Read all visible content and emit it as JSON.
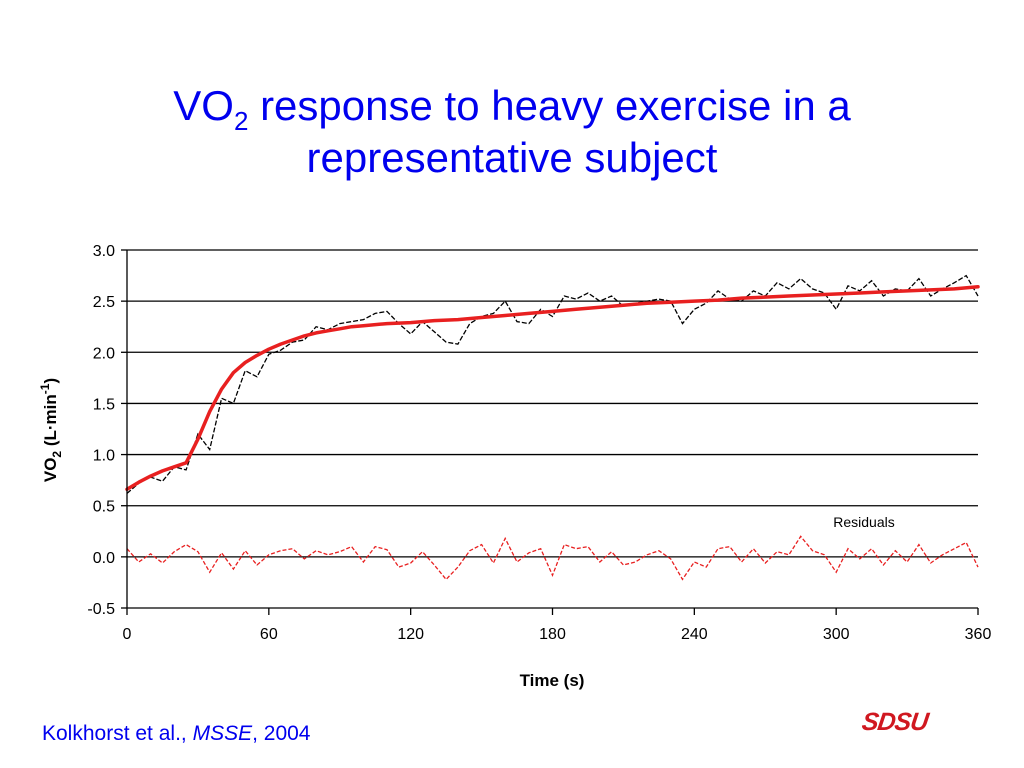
{
  "title": {
    "line1_pre": "VO",
    "line1_sub": "2",
    "line1_post": " response to heavy exercise in a",
    "line2": "representative subject"
  },
  "citation": {
    "authors": "Kolkhorst et al., ",
    "journal": "MSSE",
    "year": ", 2004"
  },
  "logo_text": "SDSU",
  "colors": {
    "title": "#0000ee",
    "fit": "#e82020",
    "data": "#000000",
    "residual": "#e82020",
    "logo": "#d01820"
  },
  "chart_data": {
    "type": "line",
    "xlabel": "Time (s)",
    "ylabel": {
      "pre": "VO",
      "sub": "2",
      "post": " (L·min",
      "sup": "-1",
      "end": ")"
    },
    "xlim": [
      0,
      360
    ],
    "ylim": [
      -0.5,
      3.0
    ],
    "xticks": [
      0,
      60,
      120,
      180,
      240,
      300,
      360
    ],
    "xtick_labels": [
      "0",
      "60",
      "120",
      "180",
      "240",
      "300",
      "360"
    ],
    "yticks": [
      3.0,
      2.5,
      2.0,
      1.5,
      1.0,
      0.5,
      0.0,
      -0.5
    ],
    "ytick_labels": [
      "3.0",
      "2.5",
      "2.0",
      "1.5",
      "1.0",
      "0.5",
      "0.0",
      "-0.5"
    ],
    "grid": "horizontal",
    "annotation": "Residuals",
    "series": [
      {
        "style": "black-dashed",
        "x": [
          0,
          5,
          10,
          15,
          20,
          25,
          30,
          35,
          40,
          45,
          50,
          55,
          60,
          65,
          70,
          75,
          80,
          85,
          90,
          95,
          100,
          105,
          110,
          115,
          120,
          125,
          130,
          135,
          140,
          145,
          150,
          155,
          160,
          165,
          170,
          175,
          180,
          185,
          190,
          195,
          200,
          205,
          210,
          215,
          220,
          225,
          230,
          235,
          240,
          245,
          250,
          255,
          260,
          265,
          270,
          275,
          280,
          285,
          290,
          295,
          300,
          305,
          310,
          315,
          320,
          325,
          330,
          335,
          340,
          345,
          350,
          355,
          360
        ],
        "values": [
          0.62,
          0.72,
          0.78,
          0.74,
          0.88,
          0.85,
          1.2,
          1.05,
          1.55,
          1.5,
          1.82,
          1.76,
          1.98,
          2.02,
          2.1,
          2.12,
          2.25,
          2.22,
          2.28,
          2.3,
          2.32,
          2.38,
          2.4,
          2.28,
          2.18,
          2.3,
          2.2,
          2.1,
          2.08,
          2.28,
          2.35,
          2.38,
          2.5,
          2.3,
          2.28,
          2.42,
          2.35,
          2.55,
          2.52,
          2.58,
          2.5,
          2.55,
          2.45,
          2.48,
          2.5,
          2.52,
          2.5,
          2.28,
          2.42,
          2.48,
          2.6,
          2.52,
          2.5,
          2.6,
          2.55,
          2.68,
          2.62,
          2.72,
          2.62,
          2.58,
          2.42,
          2.65,
          2.6,
          2.7,
          2.55,
          2.62,
          2.6,
          2.72,
          2.55,
          2.62,
          2.68,
          2.75,
          2.55
        ]
      },
      {
        "style": "red-fit",
        "x": [
          0,
          5,
          10,
          15,
          20,
          25,
          30,
          35,
          40,
          45,
          50,
          55,
          60,
          65,
          70,
          75,
          80,
          85,
          90,
          95,
          100,
          110,
          120,
          130,
          140,
          150,
          160,
          170,
          180,
          190,
          200,
          210,
          220,
          230,
          240,
          250,
          260,
          270,
          280,
          290,
          300,
          310,
          320,
          330,
          340,
          350,
          360
        ],
        "values": [
          0.66,
          0.73,
          0.79,
          0.84,
          0.88,
          0.92,
          1.15,
          1.42,
          1.64,
          1.8,
          1.9,
          1.97,
          2.03,
          2.08,
          2.12,
          2.16,
          2.19,
          2.21,
          2.23,
          2.25,
          2.26,
          2.28,
          2.29,
          2.31,
          2.32,
          2.34,
          2.36,
          2.38,
          2.4,
          2.42,
          2.44,
          2.46,
          2.48,
          2.49,
          2.5,
          2.51,
          2.53,
          2.54,
          2.55,
          2.56,
          2.57,
          2.58,
          2.59,
          2.6,
          2.61,
          2.62,
          2.64
        ]
      },
      {
        "style": "residuals-dashed",
        "x": [
          0,
          5,
          10,
          15,
          20,
          25,
          30,
          35,
          40,
          45,
          50,
          55,
          60,
          65,
          70,
          75,
          80,
          85,
          90,
          95,
          100,
          105,
          110,
          115,
          120,
          125,
          130,
          135,
          140,
          145,
          150,
          155,
          160,
          165,
          170,
          175,
          180,
          185,
          190,
          195,
          200,
          205,
          210,
          215,
          220,
          225,
          230,
          235,
          240,
          245,
          250,
          255,
          260,
          265,
          270,
          275,
          280,
          285,
          290,
          295,
          300,
          305,
          310,
          315,
          320,
          325,
          330,
          335,
          340,
          345,
          350,
          355,
          360
        ],
        "values": [
          0.08,
          -0.05,
          0.03,
          -0.06,
          0.05,
          0.12,
          0.05,
          -0.15,
          0.04,
          -0.12,
          0.06,
          -0.08,
          0.02,
          0.06,
          0.08,
          -0.02,
          0.06,
          0.02,
          0.05,
          0.1,
          -0.05,
          0.1,
          0.07,
          -0.1,
          -0.06,
          0.05,
          -0.08,
          -0.22,
          -0.1,
          0.06,
          0.12,
          -0.06,
          0.18,
          -0.05,
          0.04,
          0.08,
          -0.18,
          0.12,
          0.08,
          0.1,
          -0.05,
          0.05,
          -0.08,
          -0.05,
          0.02,
          0.06,
          -0.02,
          -0.22,
          -0.05,
          -0.1,
          0.08,
          0.1,
          -0.05,
          0.08,
          -0.06,
          0.05,
          0.02,
          0.2,
          0.06,
          0.02,
          -0.15,
          0.08,
          -0.02,
          0.08,
          -0.08,
          0.06,
          -0.05,
          0.12,
          -0.06,
          0.02,
          0.08,
          0.14,
          -0.1
        ]
      }
    ]
  }
}
